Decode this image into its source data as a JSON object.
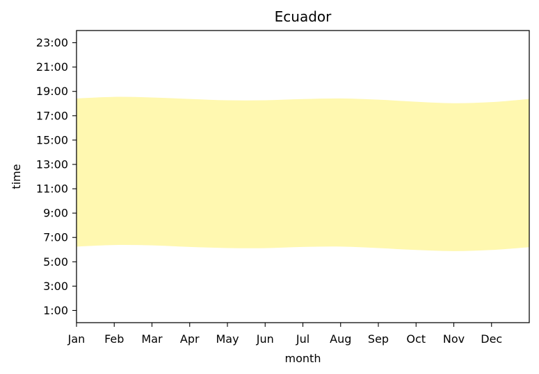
{
  "chart_data": {
    "type": "area",
    "title": "Ecuador",
    "xlabel": "month",
    "ylabel": "time",
    "x_ticks": [
      "Jan",
      "Feb",
      "Mar",
      "Apr",
      "May",
      "Jun",
      "Jul",
      "Aug",
      "Sep",
      "Oct",
      "Nov",
      "Dec"
    ],
    "y_ticks": [
      "1:00",
      "3:00",
      "5:00",
      "7:00",
      "9:00",
      "11:00",
      "13:00",
      "15:00",
      "17:00",
      "19:00",
      "21:00",
      "23:00"
    ],
    "y_tick_values": [
      1,
      3,
      5,
      7,
      9,
      11,
      13,
      15,
      17,
      19,
      21,
      23
    ],
    "xlim": [
      1,
      13
    ],
    "ylim": [
      0,
      24
    ],
    "grid": false,
    "fill_color": "#fff8b0",
    "sunrise": {
      "x": [
        1,
        2,
        3,
        4,
        5,
        6,
        7,
        8,
        9,
        10,
        11,
        12,
        13
      ],
      "y": [
        6.25,
        6.38,
        6.35,
        6.22,
        6.13,
        6.12,
        6.22,
        6.25,
        6.13,
        5.97,
        5.88,
        5.97,
        6.2
      ]
    },
    "sunset": {
      "x": [
        1,
        2,
        3,
        4,
        5,
        6,
        7,
        8,
        9,
        10,
        11,
        12,
        13
      ],
      "y": [
        18.42,
        18.55,
        18.5,
        18.38,
        18.27,
        18.27,
        18.37,
        18.42,
        18.32,
        18.15,
        18.03,
        18.12,
        18.38
      ]
    }
  }
}
